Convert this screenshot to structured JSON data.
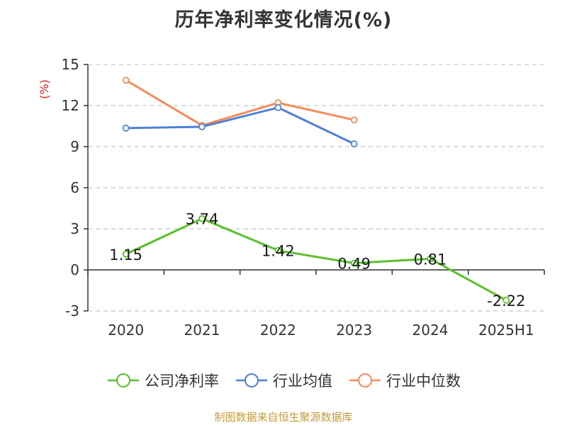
{
  "title": "历年净利率变化情况(%)",
  "source_note": "制图数据来自恒生聚源数据库",
  "chart_data": {
    "type": "line",
    "title": "历年净利率变化情况(%)",
    "ylabel": "(%)",
    "xlabel": "",
    "ylim": [
      -3,
      15
    ],
    "yticks": [
      -3,
      0,
      3,
      6,
      9,
      12,
      15
    ],
    "grid": true,
    "legend_position": "bottom",
    "categories": [
      "2020",
      "2021",
      "2022",
      "2023",
      "2024",
      "2025H1"
    ],
    "series": [
      {
        "name": "公司净利率",
        "color": "#5ac02a",
        "values": [
          1.15,
          3.74,
          1.42,
          0.49,
          0.81,
          -2.22
        ],
        "labels": [
          "1.15",
          "3.74",
          "1.42",
          "0.49",
          "0.81",
          "-2.22"
        ]
      },
      {
        "name": "行业均值",
        "color": "#4e80d8",
        "values": [
          10.35,
          10.45,
          11.85,
          9.2,
          null,
          null
        ]
      },
      {
        "name": "行业中位数",
        "color": "#f58c5a",
        "values": [
          13.85,
          10.55,
          12.2,
          10.95,
          null,
          null
        ]
      }
    ]
  }
}
